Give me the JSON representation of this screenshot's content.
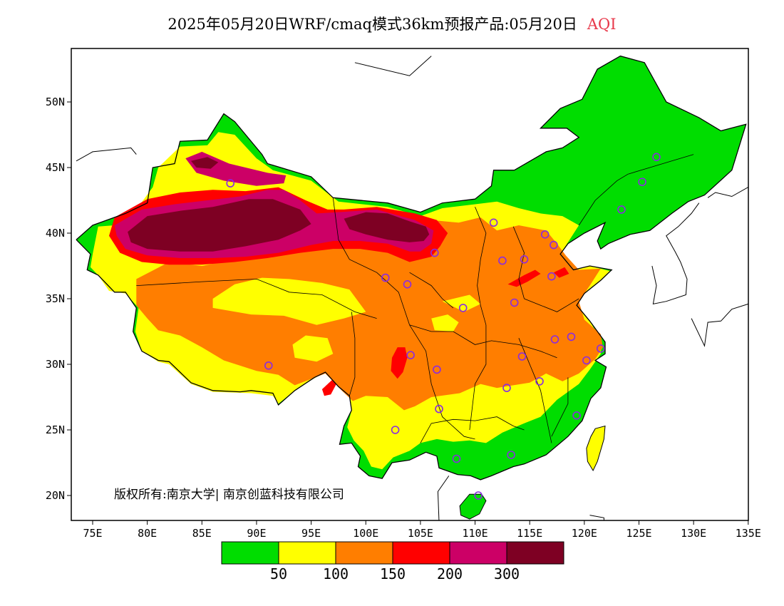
{
  "title": {
    "main": "2025年05月20日WRF/cmaq模式36km预报产品:05月20日",
    "variable": "AQI"
  },
  "copyright": "版权所有:南京大学| 南京创蓝科技有限公司",
  "map": {
    "region": "China",
    "projection": "lat-lon",
    "lon_range": [
      73,
      135
    ],
    "lat_range": [
      18,
      54
    ],
    "x_ticks": [
      {
        "value": 75,
        "label": "75E"
      },
      {
        "value": 80,
        "label": "80E"
      },
      {
        "value": 85,
        "label": "85E"
      },
      {
        "value": 90,
        "label": "90E"
      },
      {
        "value": 95,
        "label": "95E"
      },
      {
        "value": 100,
        "label": "100E"
      },
      {
        "value": 105,
        "label": "105E"
      },
      {
        "value": 110,
        "label": "110E"
      },
      {
        "value": 115,
        "label": "115E"
      },
      {
        "value": 120,
        "label": "120E"
      },
      {
        "value": 125,
        "label": "125E"
      },
      {
        "value": 130,
        "label": "130E"
      },
      {
        "value": 135,
        "label": "135E"
      }
    ],
    "y_ticks": [
      {
        "value": 50,
        "label": "50N"
      },
      {
        "value": 45,
        "label": "45N"
      },
      {
        "value": 40,
        "label": "40N"
      },
      {
        "value": 35,
        "label": "35N"
      },
      {
        "value": 30,
        "label": "30N"
      },
      {
        "value": 25,
        "label": "25N"
      },
      {
        "value": 20,
        "label": "20N"
      }
    ]
  },
  "legend": {
    "colors": [
      "#00dd00",
      "#ffff00",
      "#ff7e00",
      "#ff0000",
      "#cc0066",
      "#7e0023"
    ],
    "labels": [
      "50",
      "100",
      "150",
      "200",
      "300"
    ]
  },
  "colors": {
    "good": "#00dd00",
    "moderate": "#ffff00",
    "usg": "#ff7e00",
    "unhealthy": "#ff0000",
    "very_unhealthy": "#cc0066",
    "hazardous": "#7e0023",
    "station_marker": "#8a2be2"
  },
  "stations": [
    {
      "lon": 87.6,
      "lat": 43.8
    },
    {
      "lon": 91.1,
      "lat": 29.9
    },
    {
      "lon": 101.8,
      "lat": 36.6
    },
    {
      "lon": 103.8,
      "lat": 36.1
    },
    {
      "lon": 106.3,
      "lat": 38.5
    },
    {
      "lon": 111.7,
      "lat": 40.8
    },
    {
      "lon": 112.5,
      "lat": 37.9
    },
    {
      "lon": 114.5,
      "lat": 38.0
    },
    {
      "lon": 116.4,
      "lat": 39.9
    },
    {
      "lon": 117.2,
      "lat": 39.1
    },
    {
      "lon": 117.0,
      "lat": 36.7
    },
    {
      "lon": 113.6,
      "lat": 34.7
    },
    {
      "lon": 108.9,
      "lat": 34.3
    },
    {
      "lon": 104.1,
      "lat": 30.7
    },
    {
      "lon": 106.5,
      "lat": 29.6
    },
    {
      "lon": 114.3,
      "lat": 30.6
    },
    {
      "lon": 117.3,
      "lat": 31.9
    },
    {
      "lon": 118.8,
      "lat": 32.1
    },
    {
      "lon": 121.5,
      "lat": 31.2
    },
    {
      "lon": 120.2,
      "lat": 30.3
    },
    {
      "lon": 115.9,
      "lat": 28.7
    },
    {
      "lon": 112.9,
      "lat": 28.2
    },
    {
      "lon": 106.7,
      "lat": 26.6
    },
    {
      "lon": 102.7,
      "lat": 25.0
    },
    {
      "lon": 108.3,
      "lat": 22.8
    },
    {
      "lon": 113.3,
      "lat": 23.1
    },
    {
      "lon": 119.3,
      "lat": 26.1
    },
    {
      "lon": 110.3,
      "lat": 20.0
    },
    {
      "lon": 123.4,
      "lat": 41.8
    },
    {
      "lon": 125.3,
      "lat": 43.9
    },
    {
      "lon": 126.6,
      "lat": 45.8
    }
  ]
}
